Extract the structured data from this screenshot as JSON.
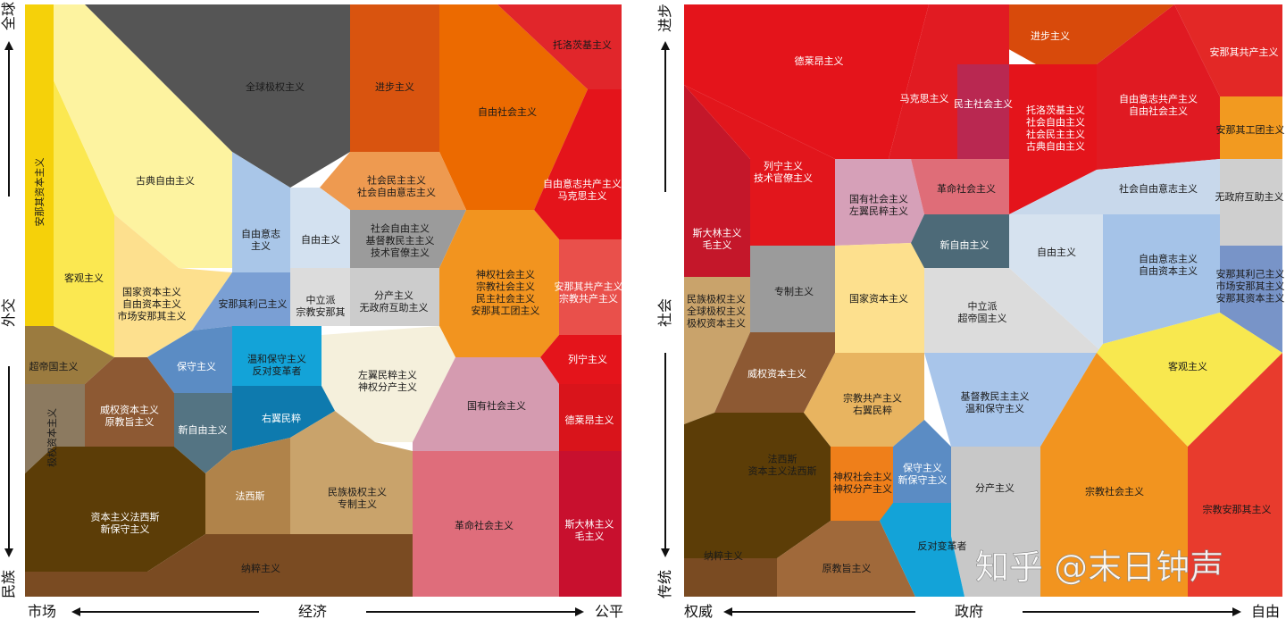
{
  "left": {
    "axes": {
      "top": "全球",
      "left_mid": "外交",
      "bottom": "民族",
      "x_left": "市场",
      "x_mid": "经济",
      "x_right": "公平"
    },
    "regions": [
      {
        "key": "anarcho_capitalism",
        "label": [
          "安那其资本主义"
        ],
        "color": "#f5d10a"
      },
      {
        "key": "objectivism",
        "label": [
          "客观主义"
        ],
        "color": "#fbe851"
      },
      {
        "key": "classical_liberalism",
        "label": [
          "古典自由主义"
        ],
        "color": "#fdf3a0"
      },
      {
        "key": "global_totalitarianism",
        "label": [
          "全球极权主义"
        ],
        "color": "#555555"
      },
      {
        "key": "progressivism",
        "label": [
          "进步主义"
        ],
        "color": "#d9540f"
      },
      {
        "key": "libertarian_socialism",
        "label": [
          "自由社会主义"
        ],
        "color": "#ec6a00"
      },
      {
        "key": "trotskyism",
        "label": [
          "托洛茨基主义"
        ],
        "color": "#e1262b"
      },
      {
        "key": "libertarian_communism",
        "label": [
          "自由意志共产主义",
          "马克思主义"
        ],
        "color": "#e4141b"
      },
      {
        "key": "social_democracy",
        "label": [
          "社会民主主义",
          "社会自由意志主义"
        ],
        "color": "#ee9a50"
      },
      {
        "key": "libertarianism",
        "label": [
          "自由意志",
          "主义"
        ],
        "color": "#a9c6e8"
      },
      {
        "key": "liberalism",
        "label": [
          "自由主义"
        ],
        "color": "#d3e1f0"
      },
      {
        "key": "social_liberalism",
        "label": [
          "社会自由主义",
          "基督教民主主义",
          "技术官僚主义"
        ],
        "color": "#9b9b9b"
      },
      {
        "key": "state_capitalism",
        "label": [
          "国家资本主义",
          "自由资本主义",
          "市场安那其主义"
        ],
        "color": "#fde08e"
      },
      {
        "key": "anarcho_egoism",
        "label": [
          "安那其利己主义"
        ],
        "color": "#7a9fd4"
      },
      {
        "key": "centrism",
        "label": [
          "中立派",
          "宗教安那其"
        ],
        "color": "#dcdcdc"
      },
      {
        "key": "distributism",
        "label": [
          "分产主义",
          "无政府互助主义"
        ],
        "color": "#cccccc"
      },
      {
        "key": "theocratic_socialism",
        "label": [
          "神权社会主义",
          "宗教社会主义",
          "民主社会主义",
          "安那其工团主义"
        ],
        "color": "#f2941f"
      },
      {
        "key": "anarcho_communism",
        "label": [
          "安那其共产主义",
          "宗教共产主义"
        ],
        "color": "#e9504b"
      },
      {
        "key": "supranationalism",
        "label": [
          "超帝国主义"
        ],
        "color": "#9b7b3f"
      },
      {
        "key": "conservatism",
        "label": [
          "保守主义"
        ],
        "color": "#5b8cc4"
      },
      {
        "key": "moderate_conservatism",
        "label": [
          "温和保守主义",
          "反对变革者"
        ],
        "color": "#13a3d8"
      },
      {
        "key": "left_populism",
        "label": [
          "左翼民粹主义",
          "神权分产主义"
        ],
        "color": "#f5f0dc"
      },
      {
        "key": "leninism",
        "label": [
          "列宁主义"
        ],
        "color": "#e4141b"
      },
      {
        "key": "state_socialism",
        "label": [
          "国有社会主义"
        ],
        "color": "#d59bb0"
      },
      {
        "key": "juche",
        "label": [
          "德莱昂主义"
        ],
        "color": "#d9141b"
      },
      {
        "key": "authoritarian_capitalism",
        "label": [
          "威权资本主义",
          "原教旨主义"
        ],
        "color": "#8d5933"
      },
      {
        "key": "neoliberalism",
        "label": [
          "新自由主义"
        ],
        "color": "#547483"
      },
      {
        "key": "right_populism",
        "label": [
          "右翼民粹"
        ],
        "color": "#0e7aae"
      },
      {
        "key": "totalitarian_capitalism",
        "label": [
          "极权资本主义"
        ],
        "color": "#8c7a60"
      },
      {
        "key": "fascism",
        "label": [
          "法西斯"
        ],
        "color": "#b0834a"
      },
      {
        "key": "national_totalitarianism",
        "label": [
          "民族极权主义",
          "专制主义"
        ],
        "color": "#c9a36b"
      },
      {
        "key": "revolutionary_socialism",
        "label": [
          "革命社会主义"
        ],
        "color": "#df6d7b"
      },
      {
        "key": "stalinism",
        "label": [
          "斯大林主义",
          "毛主义"
        ],
        "color": "#c8102e"
      },
      {
        "key": "capitalist_fascism",
        "label": [
          "资本主义法西斯",
          "新保守主义"
        ],
        "color": "#5c3d07"
      },
      {
        "key": "nazism",
        "label": [
          "纳粹主义"
        ],
        "color": "#7a4b22"
      }
    ]
  },
  "right": {
    "axes": {
      "top": "进步",
      "left_mid": "社会",
      "bottom": "传统",
      "x_left": "权威",
      "x_mid": "政府",
      "x_right": "自由"
    },
    "regions": [
      {
        "key": "progressivism",
        "label": [
          "进步主义"
        ],
        "color": "#d84a0b"
      },
      {
        "key": "deleonism",
        "label": [
          "德莱昂主义"
        ],
        "color": "#e4141b"
      },
      {
        "key": "anarcho_communism",
        "label": [
          "安那其共产主义"
        ],
        "color": "#e32826"
      },
      {
        "key": "marxism",
        "label": [
          "马克思主义"
        ],
        "color": "#e11b22"
      },
      {
        "key": "democratic_socialism",
        "label": [
          "民主社会主义"
        ],
        "color": "#b92851"
      },
      {
        "key": "trotskyism",
        "label": [
          "托洛茨基主义",
          "社会自由主义",
          "社会民主主义",
          "古典自由主义"
        ],
        "color": "#e4141b"
      },
      {
        "key": "libertarian_communism",
        "label": [
          "自由意志共产主义",
          "自由社会主义"
        ],
        "color": "#e01a22"
      },
      {
        "key": "anarcho_syndicalism",
        "label": [
          "安那其工团主义"
        ],
        "color": "#f29a20"
      },
      {
        "key": "stalinism",
        "label": [
          "斯大林主义",
          "毛主义"
        ],
        "color": "#c4172a"
      },
      {
        "key": "leninism",
        "label": [
          "列宁主义",
          "技术官僚主义"
        ],
        "color": "#e2161c"
      },
      {
        "key": "state_socialism",
        "label": [
          "国有社会主义",
          "左翼民粹主义"
        ],
        "color": "#d6a0b8"
      },
      {
        "key": "revolutionary_socialism",
        "label": [
          "革命社会主义"
        ],
        "color": "#df6d78"
      },
      {
        "key": "social_libertarianism",
        "label": [
          "社会自由意志主义"
        ],
        "color": "#c8d8eb"
      },
      {
        "key": "mutualism",
        "label": [
          "无政府互助主义"
        ],
        "color": "#cfcfcf"
      },
      {
        "key": "neoliberalism",
        "label": [
          "新自由主义"
        ],
        "color": "#4d6a78"
      },
      {
        "key": "liberalism",
        "label": [
          "自由主义"
        ],
        "color": "#d6e2ef"
      },
      {
        "key": "libertarianism",
        "label": [
          "自由意志主义",
          "自由资本主义"
        ],
        "color": "#a5c3e8"
      },
      {
        "key": "anarcho_egoism",
        "label": [
          "安那其利己主义",
          "市场安那其主义",
          "安那其资本主义"
        ],
        "color": "#7894c8"
      },
      {
        "key": "national_totalitarianism",
        "label": [
          "民族极权主义",
          "全球极权主义",
          "极权资本主义"
        ],
        "color": "#c9a36b"
      },
      {
        "key": "despotism",
        "label": [
          "专制主义"
        ],
        "color": "#9b9b9b"
      },
      {
        "key": "state_capitalism",
        "label": [
          "国家资本主义"
        ],
        "color": "#fde08e"
      },
      {
        "key": "centrism",
        "label": [
          "中立派",
          "超帝国主义"
        ],
        "color": "#dcdcdc"
      },
      {
        "key": "objectivism",
        "label": [
          "客观主义"
        ],
        "color": "#f8e84f"
      },
      {
        "key": "authoritarian_capitalism",
        "label": [
          "威权资本主义"
        ],
        "color": "#8d5933"
      },
      {
        "key": "religious_communism",
        "label": [
          "宗教共产主义",
          "右翼民粹"
        ],
        "color": "#e8b460"
      },
      {
        "key": "christian_democracy",
        "label": [
          "基督教民主主义",
          "温和保守主义"
        ],
        "color": "#a8c5ea"
      },
      {
        "key": "fascism",
        "label": [
          "法西斯",
          "资本主义法西斯"
        ],
        "color": "#5c3d07"
      },
      {
        "key": "theocratic_socialism",
        "label": [
          "神权社会主义",
          "神权分产主义"
        ],
        "color": "#ef7f1a"
      },
      {
        "key": "conservatism",
        "label": [
          "保守主义",
          "新保守主义"
        ],
        "color": "#5b8cc4"
      },
      {
        "key": "distributism",
        "label": [
          "分产主义"
        ],
        "color": "#c8c8c8"
      },
      {
        "key": "religious_socialism",
        "label": [
          "宗教社会主义"
        ],
        "color": "#f2941f"
      },
      {
        "key": "religious_anarchism",
        "label": [
          "宗教安那其主义"
        ],
        "color": "#e83b2d"
      },
      {
        "key": "nazism",
        "label": [
          "纳粹主义"
        ],
        "color": "#7a4b22"
      },
      {
        "key": "fundamentalism",
        "label": [
          "原教旨主义"
        ],
        "color": "#a0693a"
      },
      {
        "key": "reactionary",
        "label": [
          "反对变革者"
        ],
        "color": "#13a3d8"
      }
    ]
  },
  "watermark": "知乎 @末日钟声"
}
